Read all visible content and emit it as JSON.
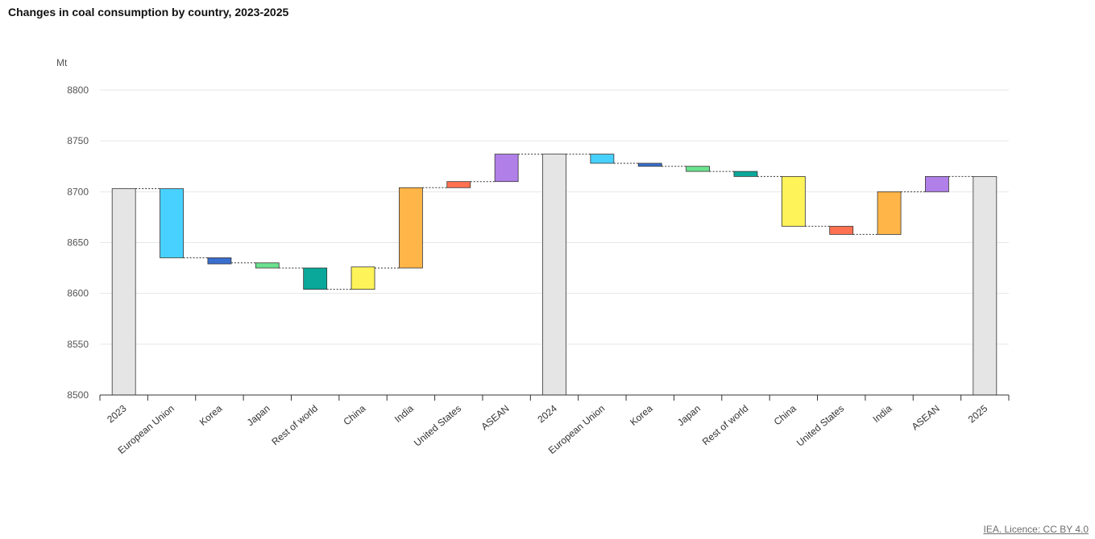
{
  "title": "Changes in coal consumption by country, 2023-2025",
  "footer": "IEA. Licence: CC BY 4.0",
  "chart_data": {
    "type": "bar",
    "subtype": "waterfall",
    "title": "Changes in coal consumption by country, 2023-2025",
    "ylabel": "Mt",
    "ylim": [
      8500,
      8800
    ],
    "yticks": [
      8500,
      8550,
      8600,
      8650,
      8700,
      8750,
      8800
    ],
    "grid": true,
    "bars": [
      {
        "label": "2023",
        "kind": "total",
        "start": 8500,
        "end": 8703,
        "color": "#e5e5e5"
      },
      {
        "label": "European Union",
        "kind": "change",
        "start": 8703,
        "end": 8635,
        "color": "#48d1ff"
      },
      {
        "label": "Korea",
        "kind": "change",
        "start": 8635,
        "end": 8629,
        "color": "#3a6fcf"
      },
      {
        "label": "Japan",
        "kind": "change",
        "start": 8630,
        "end": 8625,
        "color": "#6be28e"
      },
      {
        "label": "Rest of world",
        "kind": "change",
        "start": 8625,
        "end": 8604,
        "color": "#0aa89a"
      },
      {
        "label": "China",
        "kind": "change",
        "start": 8604,
        "end": 8626,
        "color": "#fff35a"
      },
      {
        "label": "India",
        "kind": "change",
        "start": 8625,
        "end": 8704,
        "color": "#ffb547"
      },
      {
        "label": "United States",
        "kind": "change",
        "start": 8704,
        "end": 8710,
        "color": "#ff7150"
      },
      {
        "label": "ASEAN",
        "kind": "change",
        "start": 8710,
        "end": 8737,
        "color": "#b07fe8"
      },
      {
        "label": "2024",
        "kind": "total",
        "start": 8500,
        "end": 8737,
        "color": "#e5e5e5"
      },
      {
        "label": "European Union",
        "kind": "change",
        "start": 8737,
        "end": 8728,
        "color": "#48d1ff"
      },
      {
        "label": "Korea",
        "kind": "change",
        "start": 8728,
        "end": 8725,
        "color": "#3a6fcf"
      },
      {
        "label": "Japan",
        "kind": "change",
        "start": 8725,
        "end": 8720,
        "color": "#6be28e"
      },
      {
        "label": "Rest of world",
        "kind": "change",
        "start": 8720,
        "end": 8715,
        "color": "#0aa89a"
      },
      {
        "label": "China",
        "kind": "change",
        "start": 8715,
        "end": 8666,
        "color": "#fff35a"
      },
      {
        "label": "United States",
        "kind": "change",
        "start": 8666,
        "end": 8658,
        "color": "#ff7150"
      },
      {
        "label": "India",
        "kind": "change",
        "start": 8658,
        "end": 8700,
        "color": "#ffb547"
      },
      {
        "label": "ASEAN",
        "kind": "change",
        "start": 8700,
        "end": 8715,
        "color": "#b07fe8"
      },
      {
        "label": "2025",
        "kind": "total",
        "start": 8500,
        "end": 8715,
        "color": "#e5e5e5"
      }
    ]
  }
}
